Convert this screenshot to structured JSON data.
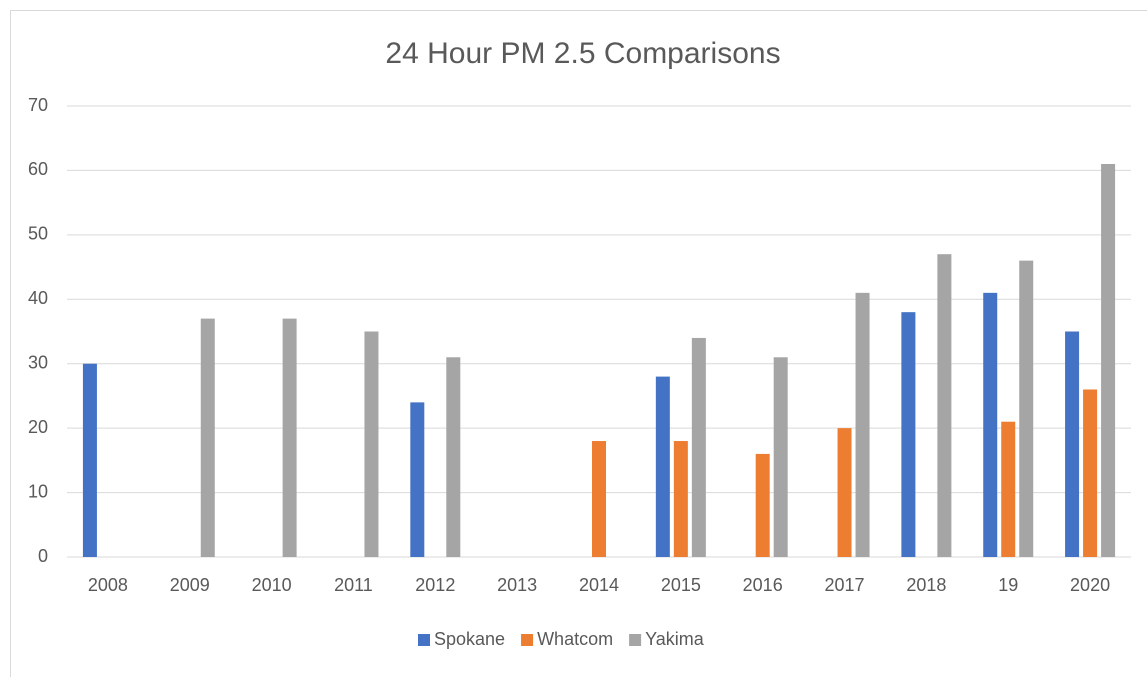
{
  "chart_data": {
    "type": "bar",
    "title": "24 Hour PM 2.5 Comparisons",
    "categories": [
      "2008",
      "2009",
      "2010",
      "2011",
      "2012",
      "2013",
      "2014",
      "2015",
      "2016",
      "2017",
      "2018",
      "19",
      "2020"
    ],
    "series": [
      {
        "name": "Spokane",
        "color": "#4472c4",
        "values": [
          30,
          null,
          null,
          null,
          24,
          null,
          null,
          28,
          null,
          null,
          38,
          41,
          35
        ]
      },
      {
        "name": "Whatcom",
        "color": "#ed7d31",
        "values": [
          null,
          null,
          null,
          null,
          null,
          null,
          18,
          18,
          16,
          20,
          null,
          21,
          26
        ]
      },
      {
        "name": "Yakima",
        "color": "#a5a5a5",
        "values": [
          null,
          37,
          37,
          35,
          31,
          null,
          null,
          34,
          31,
          41,
          47,
          46,
          61
        ]
      }
    ],
    "ylim": [
      0,
      70
    ],
    "yticks": [
      0,
      10,
      20,
      30,
      40,
      50,
      60,
      70
    ],
    "grid": true,
    "legend": "bottom"
  }
}
